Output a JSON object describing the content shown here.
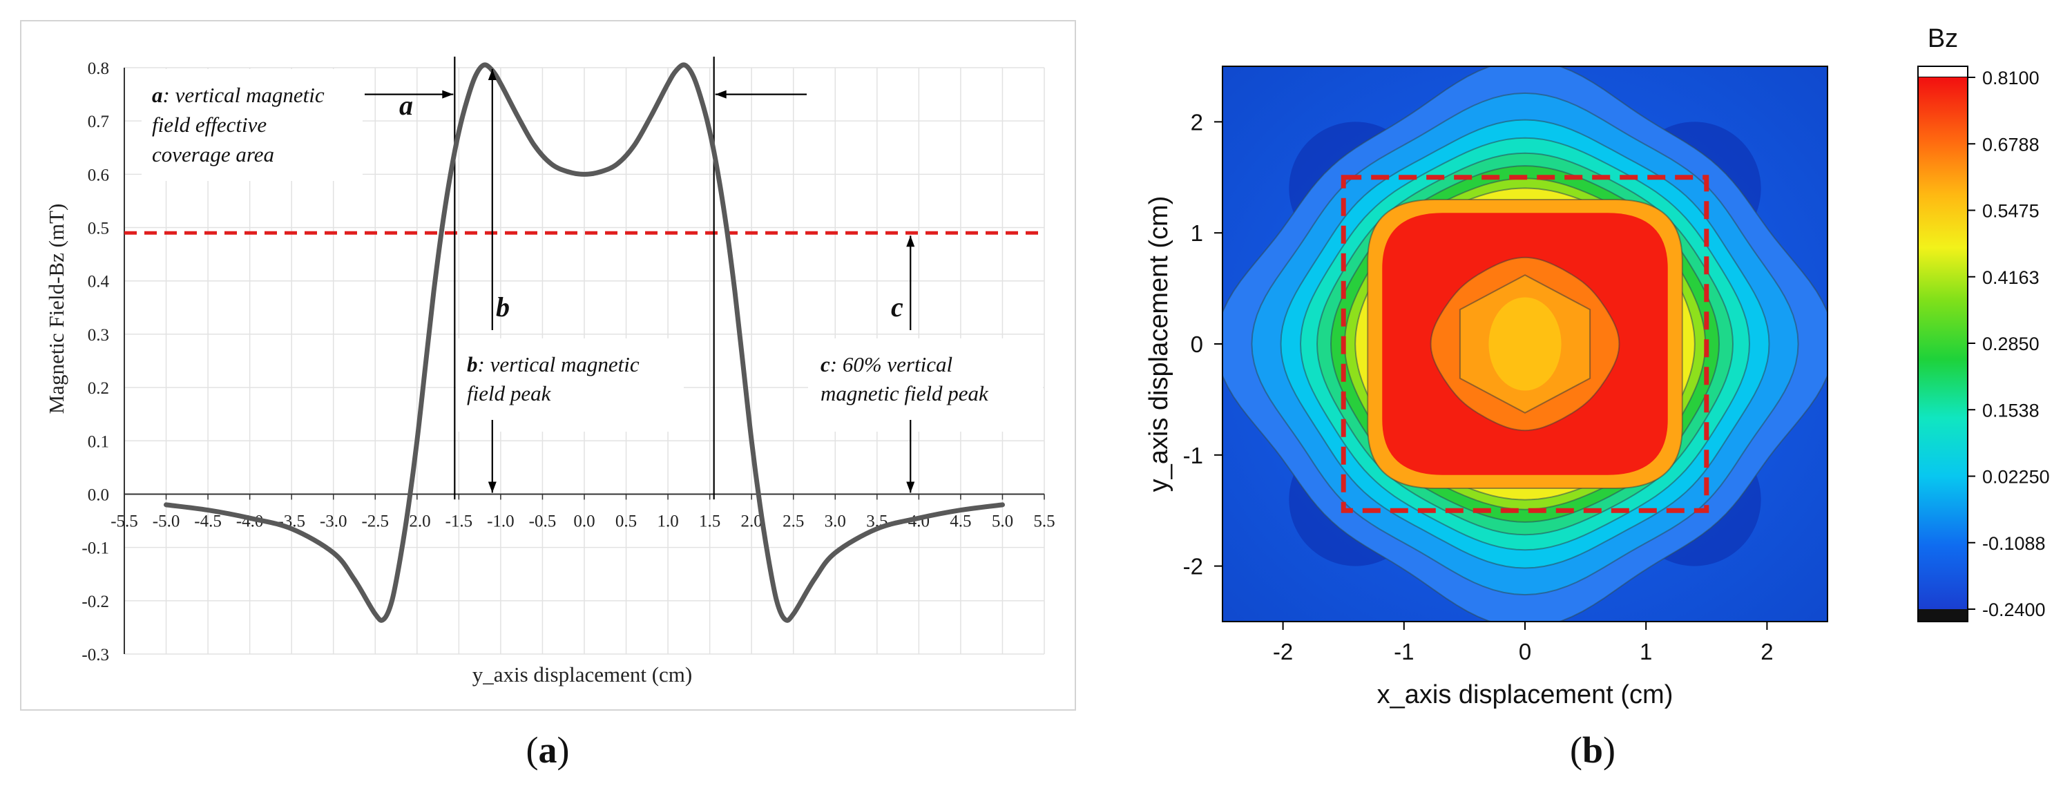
{
  "panel_a": {
    "label_open": "(",
    "label_letter": "a",
    "label_close": ")",
    "annotations": {
      "a_letter": "a",
      "a_key": "a",
      "a_line1": ": vertical magnetic",
      "a_line2": "field effective",
      "a_line3": "coverage area",
      "b_letter": "b",
      "b_key": "b",
      "b_line1": ": vertical magnetic",
      "b_line2": "field peak",
      "c_letter": "c",
      "c_key": "c",
      "c_line1": ": 60% vertical",
      "c_line2": "magnetic field peak"
    }
  },
  "panel_b": {
    "label_open": "(",
    "label_letter": "b",
    "label_close": ")",
    "colorbar_title": "Bz"
  },
  "colors": {
    "curve": "#595959",
    "threshold": "#e01e1e",
    "square": "#d8201e",
    "grid": "#e2e2e2"
  },
  "chart_data": [
    {
      "type": "line",
      "title": "",
      "xlabel": "y_axis displacement (cm)",
      "ylabel": "Magnetic Field-Bz (mT)",
      "xlim": [
        -5.5,
        5.5
      ],
      "ylim": [
        -0.3,
        0.8
      ],
      "x_ticks": [
        "-5.5",
        "-5.0",
        "-4.5",
        "-4.0",
        "-3.5",
        "-3.0",
        "-2.5",
        "-2.0",
        "-1.5",
        "-1.0",
        "-0.5",
        "0.0",
        "0.5",
        "1.0",
        "1.5",
        "2.0",
        "2.5",
        "3.0",
        "3.5",
        "4.0",
        "4.5",
        "5.0",
        "5.5"
      ],
      "y_ticks": [
        "-0.3",
        "-0.2",
        "-0.1",
        "0.0",
        "0.1",
        "0.2",
        "0.3",
        "0.4",
        "0.5",
        "0.6",
        "0.7",
        "0.8"
      ],
      "series": [
        {
          "name": "Bz",
          "x": [
            -5.0,
            -4.5,
            -4.0,
            -3.5,
            -3.0,
            -2.75,
            -2.5,
            -2.4,
            -2.3,
            -2.2,
            -2.1,
            -2.0,
            -1.9,
            -1.8,
            -1.7,
            -1.6,
            -1.5,
            -1.4,
            -1.3,
            -1.2,
            -1.1,
            -1.0,
            -0.8,
            -0.6,
            -0.4,
            -0.2,
            0.0,
            0.2,
            0.4,
            0.6,
            0.8,
            1.0,
            1.1,
            1.2,
            1.3,
            1.4,
            1.5,
            1.6,
            1.7,
            1.8,
            1.9,
            2.0,
            2.1,
            2.2,
            2.3,
            2.4,
            2.5,
            2.75,
            3.0,
            3.5,
            4.0,
            4.5,
            5.0
          ],
          "y": [
            -0.02,
            -0.03,
            -0.045,
            -0.065,
            -0.11,
            -0.16,
            -0.225,
            -0.235,
            -0.2,
            -0.12,
            -0.02,
            0.1,
            0.24,
            0.38,
            0.5,
            0.6,
            0.68,
            0.74,
            0.785,
            0.805,
            0.795,
            0.77,
            0.71,
            0.655,
            0.62,
            0.605,
            0.6,
            0.605,
            0.62,
            0.655,
            0.71,
            0.77,
            0.795,
            0.805,
            0.785,
            0.74,
            0.68,
            0.6,
            0.5,
            0.38,
            0.24,
            0.1,
            -0.02,
            -0.12,
            -0.2,
            -0.235,
            -0.225,
            -0.16,
            -0.11,
            -0.065,
            -0.045,
            -0.03,
            -0.02
          ]
        }
      ],
      "threshold_y": 0.49,
      "effective_area_x": [
        -1.55,
        1.55
      ],
      "peak_x": -1.1
    },
    {
      "type": "heatmap",
      "title": "",
      "xlabel": "x_axis displacement (cm)",
      "ylabel": "y_axis displacement (cm)",
      "xlim": [
        -2.5,
        2.5
      ],
      "ylim": [
        -2.5,
        2.5
      ],
      "x_ticks": [
        "-2",
        "-1",
        "0",
        "1",
        "2"
      ],
      "y_ticks": [
        "-2",
        "-1",
        "0",
        "1",
        "2"
      ],
      "colorbar_ticks": [
        "0.8100",
        "0.6788",
        "0.5475",
        "0.4163",
        "0.2850",
        "0.1538",
        "0.02250",
        "-0.1088",
        "-0.2400"
      ],
      "colorbar_range": [
        -0.24,
        0.81
      ],
      "region_square": [
        -1.5,
        1.5
      ]
    }
  ]
}
